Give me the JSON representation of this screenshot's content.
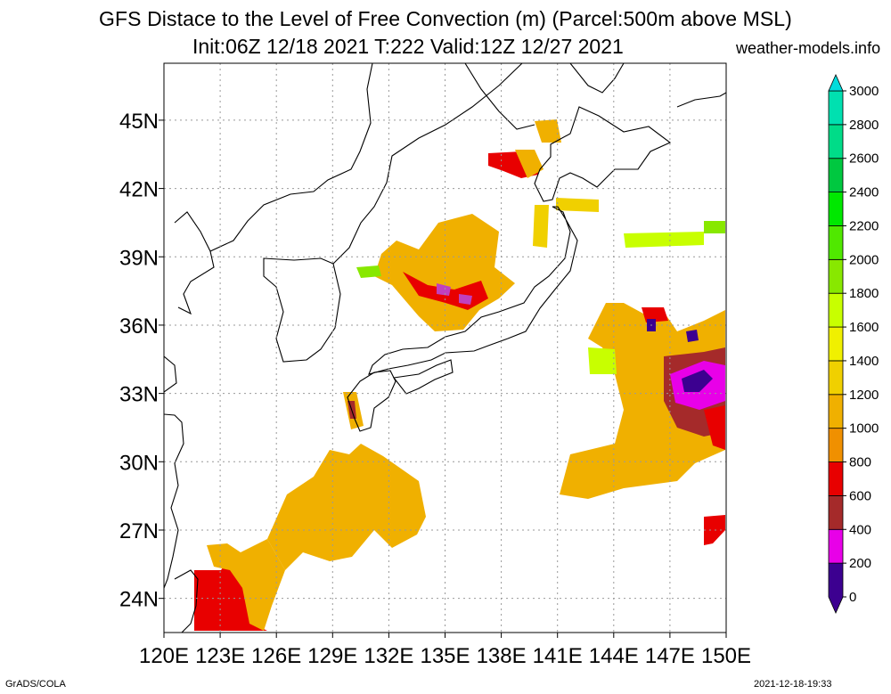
{
  "title": {
    "line1": "GFS Distace to the Level of Free Convection (m) (Parcel:500m above MSL)",
    "line2": "Init:06Z 12/18 2021 T:222 Valid:12Z 12/27 2021"
  },
  "site": "weather-models.info",
  "footer": {
    "left": "GrADS/COLA",
    "right": "2021-12-18-19:33"
  },
  "map": {
    "lon_range": [
      120,
      150
    ],
    "lat_range": [
      22.5,
      47.5
    ],
    "lon_labels": [
      "120E",
      "123E",
      "126E",
      "129E",
      "132E",
      "135E",
      "138E",
      "141E",
      "144E",
      "147E",
      "150E"
    ],
    "lat_labels": [
      "24N",
      "27N",
      "30N",
      "33N",
      "36N",
      "39N",
      "42N",
      "45N"
    ],
    "lon_ticks": [
      120,
      123,
      126,
      129,
      132,
      135,
      138,
      141,
      144,
      147,
      150
    ],
    "lat_ticks": [
      24,
      27,
      30,
      33,
      36,
      39,
      42,
      45
    ]
  },
  "legend": {
    "levels": [
      "0",
      "200",
      "400",
      "600",
      "800",
      "1000",
      "1200",
      "1400",
      "1600",
      "1800",
      "2000",
      "2200",
      "2400",
      "2600",
      "2800",
      "3000"
    ],
    "colors": [
      "#3c0090",
      "#e800e8",
      "#a52a2a",
      "#e80000",
      "#f09000",
      "#f0b000",
      "#f0d000",
      "#f0f000",
      "#c8ff00",
      "#88e800",
      "#50e800",
      "#00e800",
      "#00c840",
      "#00dc88",
      "#00e0b0",
      "#00dcdc"
    ]
  }
}
